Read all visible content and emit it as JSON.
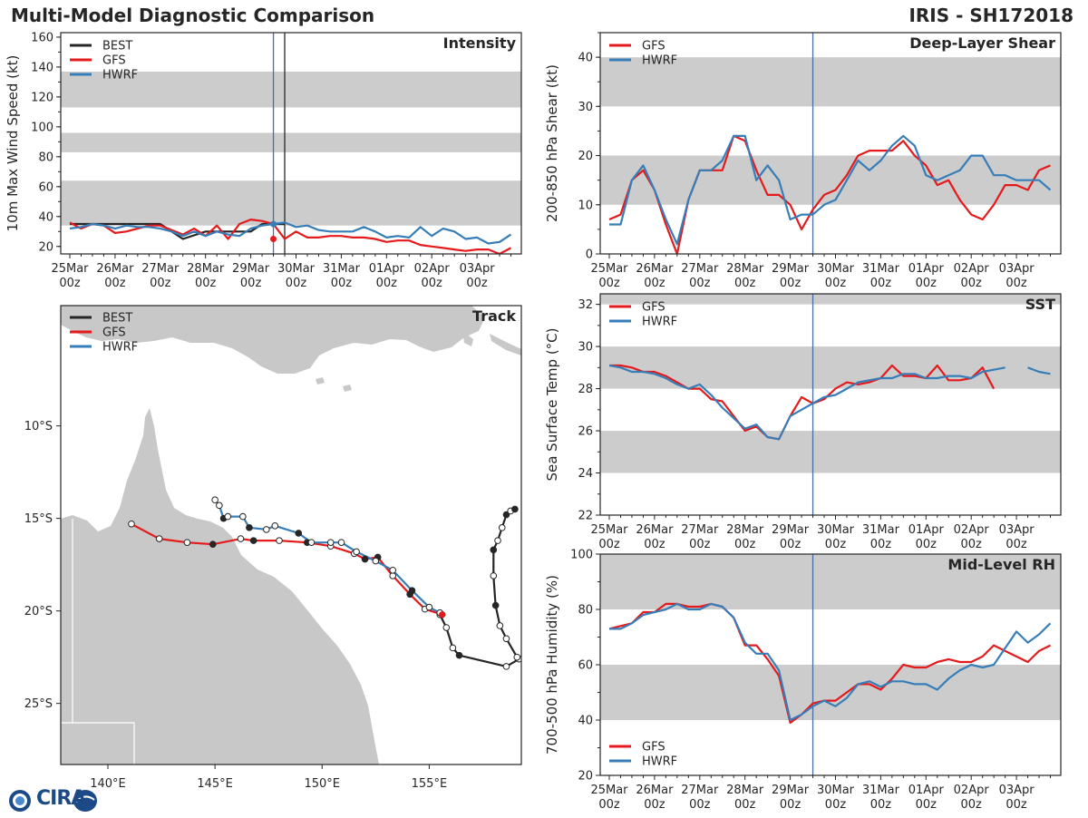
{
  "header": {
    "title": "Multi-Model Diagnostic Comparison",
    "storm": "IRIS - SH172018"
  },
  "colors": {
    "BEST": "#262626",
    "GFS": "#e41a1c",
    "HWRF": "#377eb8",
    "band": "#cccccc",
    "land": "#c8c8c8",
    "vline": "#4a6fa5"
  },
  "logo": {
    "text": "CIRA"
  },
  "time_axis": {
    "ticks": [
      "25Mar\n00z",
      "26Mar\n00z",
      "27Mar\n00z",
      "28Mar\n00z",
      "29Mar\n00z",
      "30Mar\n00z",
      "31Mar\n00z",
      "01Apr\n00z",
      "02Apr\n00z",
      "03Apr\n00z"
    ],
    "current_day": 4.5
  },
  "chart_data": [
    {
      "id": "intensity",
      "type": "line",
      "title": "Intensity",
      "ylabel": "10m Max Wind Speed (kt)",
      "ylim": [
        15,
        163
      ],
      "yticks": [
        20,
        40,
        60,
        80,
        100,
        120,
        140,
        160
      ],
      "bands": [
        [
          34,
          64
        ],
        [
          83,
          96
        ],
        [
          113,
          137
        ]
      ],
      "markers": [
        4.5,
        4.75
      ],
      "legend": [
        "BEST",
        "GFS",
        "HWRF"
      ],
      "series": [
        {
          "name": "BEST",
          "x": [
            0,
            0.5,
            1,
            1.5,
            2,
            2.5,
            3,
            3.5,
            4,
            4.25,
            4.5,
            4.75
          ],
          "y": [
            35,
            35,
            35,
            35,
            35,
            25,
            30,
            30,
            30,
            35,
            35,
            35
          ]
        },
        {
          "name": "GFS",
          "x": [
            0,
            0.25,
            0.5,
            0.75,
            1,
            1.25,
            1.5,
            1.75,
            2,
            2.25,
            2.5,
            2.75,
            3,
            3.25,
            3.5,
            3.75,
            4,
            4.25,
            4.5,
            4.75,
            5,
            5.25,
            5.5,
            5.75,
            6,
            6.25,
            6.5,
            6.75,
            7,
            7.25,
            7.5,
            7.75,
            8,
            8.25,
            8.5,
            8.75,
            9,
            9.25,
            9.5,
            9.75
          ],
          "y": [
            36,
            32,
            35,
            34,
            29,
            30,
            32,
            34,
            34,
            31,
            28,
            32,
            27,
            34,
            25,
            35,
            38,
            37,
            35,
            25,
            30,
            26,
            26,
            27,
            27,
            26,
            26,
            25,
            23,
            24,
            24,
            21,
            20,
            19,
            18,
            17,
            18,
            18,
            15,
            19
          ]
        },
        {
          "name": "HWRF",
          "x": [
            0,
            0.25,
            0.5,
            0.75,
            1,
            1.25,
            1.5,
            1.75,
            2,
            2.25,
            2.5,
            2.75,
            3,
            3.25,
            3.5,
            3.75,
            4,
            4.25,
            4.5,
            4.75,
            5,
            5.25,
            5.5,
            5.75,
            6,
            6.25,
            6.5,
            6.75,
            7,
            7.25,
            7.5,
            7.75,
            8,
            8.25,
            8.5,
            8.75,
            9,
            9.25,
            9.5,
            9.75
          ],
          "y": [
            32,
            33,
            35,
            34,
            32,
            34,
            33,
            33,
            32,
            30,
            27,
            30,
            27,
            30,
            28,
            27,
            32,
            34,
            35,
            36,
            33,
            34,
            31,
            30,
            30,
            30,
            33,
            30,
            26,
            27,
            26,
            33,
            27,
            32,
            30,
            25,
            26,
            22,
            23,
            28
          ]
        }
      ]
    },
    {
      "id": "shear",
      "type": "line",
      "title": "Deep-Layer Shear",
      "ylabel": "200-850 hPa Shear (kt)",
      "ylim": [
        0,
        45
      ],
      "yticks": [
        0,
        10,
        20,
        30,
        40
      ],
      "bands": [
        [
          10,
          20
        ],
        [
          30,
          40
        ]
      ],
      "markers": [
        4.5
      ],
      "legend": [
        "GFS",
        "HWRF"
      ],
      "series": [
        {
          "name": "GFS",
          "x": [
            0,
            0.25,
            0.5,
            0.75,
            1,
            1.25,
            1.5,
            1.75,
            2,
            2.25,
            2.5,
            2.75,
            3,
            3.25,
            3.5,
            3.75,
            4,
            4.25,
            4.5,
            4.75,
            5,
            5.25,
            5.5,
            5.75,
            6,
            6.25,
            6.5,
            6.75,
            7,
            7.25,
            7.5,
            7.75,
            8,
            8.25,
            8.5,
            8.75,
            9,
            9.25,
            9.5,
            9.75
          ],
          "y": [
            7,
            8,
            15,
            17,
            13,
            6,
            0,
            11,
            17,
            17,
            17,
            24,
            23,
            17,
            12,
            12,
            10,
            5,
            9,
            12,
            13,
            16,
            20,
            21,
            21,
            21,
            23,
            20,
            18,
            14,
            15,
            11,
            8,
            7,
            10,
            14,
            14,
            13,
            17,
            18
          ]
        },
        {
          "name": "HWRF",
          "x": [
            0,
            0.25,
            0.5,
            0.75,
            1,
            1.25,
            1.5,
            1.75,
            2,
            2.25,
            2.5,
            2.75,
            3,
            3.25,
            3.5,
            3.75,
            4,
            4.25,
            4.5,
            4.75,
            5,
            5.25,
            5.5,
            5.75,
            6,
            6.25,
            6.5,
            6.75,
            7,
            7.25,
            7.5,
            7.75,
            8,
            8.25,
            8.5,
            8.75,
            9,
            9.25,
            9.5,
            9.75
          ],
          "y": [
            6,
            6,
            15,
            18,
            13,
            7,
            2,
            11,
            17,
            17,
            19,
            24,
            24,
            15,
            18,
            15,
            7,
            8,
            8,
            10,
            11,
            15,
            19,
            17,
            19,
            22,
            24,
            22,
            16,
            15,
            16,
            17,
            20,
            20,
            16,
            16,
            15,
            15,
            15,
            13
          ]
        }
      ]
    },
    {
      "id": "sst",
      "type": "line",
      "title": "SST",
      "ylabel": "Sea Surface Temp (°C)",
      "ylim": [
        22,
        32.5
      ],
      "yticks": [
        22,
        24,
        26,
        28,
        30,
        32
      ],
      "bands": [
        [
          24,
          26
        ],
        [
          28,
          30
        ],
        [
          32,
          33
        ]
      ],
      "markers": [
        4.5
      ],
      "legend": [
        "GFS",
        "HWRF"
      ],
      "series": [
        {
          "name": "GFS",
          "x": [
            0,
            0.25,
            0.5,
            0.75,
            1,
            1.25,
            1.5,
            1.75,
            2,
            2.25,
            2.5,
            2.75,
            3,
            3.25,
            3.5,
            3.75,
            4,
            4.25,
            4.5,
            4.75,
            5,
            5.25,
            5.5,
            5.75,
            6,
            6.25,
            6.5,
            6.75,
            7,
            7.25,
            7.5,
            7.75,
            8,
            8.25,
            8.5
          ],
          "y": [
            29.1,
            29.1,
            29.0,
            28.8,
            28.8,
            28.6,
            28.3,
            28.0,
            28.0,
            27.5,
            27.4,
            26.7,
            26.0,
            26.2,
            25.7,
            25.6,
            26.7,
            27.6,
            27.3,
            27.5,
            28.0,
            28.3,
            28.2,
            28.3,
            28.5,
            29.1,
            28.6,
            28.6,
            28.5,
            29.1,
            28.4,
            28.4,
            28.5,
            29.0,
            28.0
          ]
        },
        {
          "name": "HWRF",
          "x": [
            0,
            0.25,
            0.5,
            0.75,
            1,
            1.25,
            1.5,
            1.75,
            2,
            2.25,
            2.5,
            2.75,
            3,
            3.25,
            3.5,
            3.75,
            4,
            4.25,
            4.5,
            4.75,
            5,
            5.25,
            5.5,
            5.75,
            6,
            6.25,
            6.5,
            6.75,
            7,
            7.25,
            7.5,
            7.75,
            8,
            8.25,
            8.5,
            8.75,
            9,
            9.25,
            9.5,
            9.75
          ],
          "y": [
            29.1,
            29.0,
            28.8,
            28.8,
            28.7,
            28.5,
            28.2,
            28.0,
            28.2,
            27.7,
            27.1,
            26.6,
            26.1,
            26.3,
            25.7,
            25.6,
            26.7,
            27.0,
            27.3,
            27.6,
            27.7,
            28.0,
            28.3,
            28.4,
            28.5,
            28.5,
            28.7,
            28.7,
            28.5,
            28.5,
            28.6,
            28.6,
            28.5,
            28.8,
            28.9,
            29.0,
            null,
            29.0,
            28.8,
            28.7
          ]
        }
      ]
    },
    {
      "id": "rh",
      "type": "line",
      "title": "Mid-Level RH",
      "ylabel": "700-500 hPa Humidity (%)",
      "ylim": [
        20,
        100
      ],
      "yticks": [
        20,
        40,
        60,
        80,
        100
      ],
      "bands": [
        [
          40,
          60
        ],
        [
          80,
          100
        ]
      ],
      "markers": [
        4.5
      ],
      "legend": [
        "GFS",
        "HWRF"
      ],
      "series": [
        {
          "name": "GFS",
          "x": [
            0,
            0.25,
            0.5,
            0.75,
            1,
            1.25,
            1.5,
            1.75,
            2,
            2.25,
            2.5,
            2.75,
            3,
            3.25,
            3.5,
            3.75,
            4,
            4.25,
            4.5,
            4.75,
            5,
            5.25,
            5.5,
            5.75,
            6,
            6.25,
            6.5,
            6.75,
            7,
            7.25,
            7.5,
            7.75,
            8,
            8.25,
            8.5,
            8.75,
            9,
            9.25,
            9.5,
            9.75
          ],
          "y": [
            73,
            74,
            75,
            79,
            79,
            82,
            82,
            81,
            81,
            82,
            81,
            77,
            67,
            67,
            62,
            56,
            39,
            42,
            46,
            47,
            47,
            50,
            53,
            53,
            51,
            55,
            60,
            59,
            59,
            61,
            62,
            61,
            61,
            63,
            67,
            65,
            63,
            61,
            65,
            67
          ]
        },
        {
          "name": "HWRF",
          "x": [
            0,
            0.25,
            0.5,
            0.75,
            1,
            1.25,
            1.5,
            1.75,
            2,
            2.25,
            2.5,
            2.75,
            3,
            3.25,
            3.5,
            3.75,
            4,
            4.25,
            4.5,
            4.75,
            5,
            5.25,
            5.5,
            5.75,
            6,
            6.25,
            6.5,
            6.75,
            7,
            7.25,
            7.5,
            7.75,
            8,
            8.25,
            8.5,
            8.75,
            9,
            9.25,
            9.5,
            9.75
          ],
          "y": [
            73,
            73,
            75,
            78,
            79,
            80,
            82,
            80,
            80,
            82,
            81,
            77,
            68,
            64,
            64,
            58,
            40,
            42,
            45,
            47,
            45,
            48,
            53,
            54,
            52,
            54,
            54,
            53,
            53,
            51,
            55,
            58,
            60,
            59,
            60,
            66,
            72,
            68,
            71,
            75
          ]
        }
      ]
    },
    {
      "id": "track",
      "type": "scatter",
      "title": "Track",
      "xlim": [
        137.8,
        159.3
      ],
      "ylim": [
        -28.3,
        -3.5
      ],
      "xticks": [
        140,
        145,
        150,
        155
      ],
      "xticklabels": [
        "140°E",
        "145°E",
        "150°E",
        "155°E"
      ],
      "yticks": [
        -10,
        -15,
        -20,
        -25
      ],
      "yticklabels": [
        "10°S",
        "15°S",
        "20°S",
        "25°S"
      ],
      "legend": [
        "BEST",
        "GFS",
        "HWRF"
      ],
      "series": [
        {
          "name": "BEST",
          "lon": [
            155.5,
            155.8,
            156.1,
            156.4,
            158.6,
            159.2,
            159.1,
            158.6,
            158.3,
            158.1,
            158.0,
            158.0,
            158.2,
            158.4,
            158.6,
            158.8,
            159.0
          ],
          "lat": [
            -20.2,
            -20.9,
            -22.0,
            -22.4,
            -23.0,
            -22.6,
            -22.5,
            -21.5,
            -20.8,
            -19.7,
            -18.1,
            -16.7,
            -16.2,
            -15.5,
            -14.8,
            -14.6,
            -14.5
          ],
          "filled": [
            false,
            false,
            false,
            true,
            false,
            false,
            false,
            false,
            false,
            true,
            false,
            true,
            false,
            false,
            true,
            false,
            true
          ]
        },
        {
          "name": "GFS",
          "lon": [
            141.1,
            142.4,
            143.7,
            144.9,
            146.2,
            146.8,
            148.0,
            149.3,
            150.4,
            151.5,
            152.0,
            152.6,
            153.3,
            154.1,
            154.8,
            155.6
          ],
          "lat": [
            -15.3,
            -16.1,
            -16.3,
            -16.4,
            -16.1,
            -16.2,
            -16.2,
            -16.3,
            -16.5,
            -16.9,
            -17.2,
            -17.1,
            -18.1,
            -19.1,
            -19.9,
            -20.2
          ],
          "filled": [
            false,
            false,
            false,
            true,
            false,
            true,
            false,
            true,
            false,
            false,
            true,
            true,
            false,
            true,
            false,
            false
          ]
        },
        {
          "name": "HWRF",
          "lon": [
            145.0,
            145.2,
            145.4,
            145.6,
            146.3,
            146.6,
            147.4,
            147.8,
            148.9,
            149.5,
            150.4,
            150.9,
            151.6,
            152.5,
            153.3,
            154.2,
            155.0,
            155.5
          ],
          "lat": [
            -14.0,
            -14.3,
            -15.0,
            -14.9,
            -14.9,
            -15.5,
            -15.6,
            -15.4,
            -15.8,
            -16.3,
            -16.3,
            -16.3,
            -16.8,
            -17.3,
            -17.8,
            -18.9,
            -19.8,
            -20.1
          ],
          "filled": [
            false,
            false,
            true,
            false,
            false,
            true,
            false,
            false,
            true,
            false,
            false,
            false,
            false,
            false,
            false,
            true,
            false,
            false
          ]
        }
      ]
    }
  ]
}
